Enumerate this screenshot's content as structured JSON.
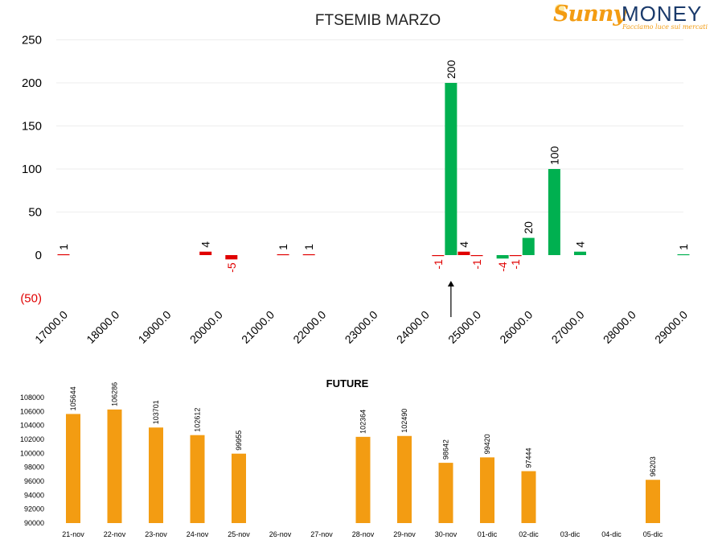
{
  "logo": {
    "brand_part1": "Sunny",
    "brand_part2": "MONEY",
    "tagline": "Facciamo luce sui mercati"
  },
  "colors": {
    "positive": "#00b050",
    "negative": "#e00000",
    "future_bar": "#f39c12",
    "axis_text": "#000000"
  },
  "chart_data": [
    {
      "type": "bar",
      "title": "FTSEMIB MARZO",
      "xlabel": "",
      "ylabel": "",
      "ylim": [
        -50,
        250
      ],
      "yticks": [
        -50,
        0,
        50,
        100,
        150,
        200,
        250
      ],
      "ytick_labels": [
        "(50)",
        "0",
        "50",
        "100",
        "150",
        "200",
        "250"
      ],
      "xlim": [
        17000,
        29000
      ],
      "xticks": [
        17000,
        18000,
        19000,
        20000,
        21000,
        22000,
        23000,
        24000,
        25000,
        26000,
        27000,
        28000,
        29000
      ],
      "xtick_labels": [
        "17000.0",
        "18000.0",
        "19000.0",
        "20000.0",
        "21000.0",
        "22000.0",
        "23000.0",
        "24000.0",
        "25000.0",
        "26000.0",
        "27000.0",
        "28000.0",
        "29000.0"
      ],
      "grid": true,
      "current_price_marker": 24500,
      "bars": [
        {
          "x": 17000,
          "value": 1,
          "label": "1",
          "sign": "neg"
        },
        {
          "x": 19750,
          "value": 4,
          "label": "4",
          "sign": "neg"
        },
        {
          "x": 20250,
          "value": -5,
          "label": "-5",
          "sign": "neg"
        },
        {
          "x": 21250,
          "value": 1,
          "label": "1",
          "sign": "neg"
        },
        {
          "x": 21750,
          "value": 1,
          "label": "1",
          "sign": "neg"
        },
        {
          "x": 24250,
          "value": -1,
          "label": "-1",
          "sign": "neg"
        },
        {
          "x": 24500,
          "value": 200,
          "label": "200",
          "sign": "pos"
        },
        {
          "x": 24750,
          "value": 4,
          "label": "4",
          "sign": "neg"
        },
        {
          "x": 25000,
          "value": -1,
          "label": "-1",
          "sign": "neg"
        },
        {
          "x": 25500,
          "value": -4,
          "label": "-4",
          "sign": "pos"
        },
        {
          "x": 25750,
          "value": -1,
          "label": "-1",
          "sign": "neg"
        },
        {
          "x": 26000,
          "value": 20,
          "label": "20",
          "sign": "pos"
        },
        {
          "x": 26500,
          "value": 100,
          "label": "100",
          "sign": "pos"
        },
        {
          "x": 27000,
          "value": 4,
          "label": "4",
          "sign": "pos"
        },
        {
          "x": 29000,
          "value": 1,
          "label": "1",
          "sign": "pos"
        }
      ]
    },
    {
      "type": "bar",
      "title": "FUTURE",
      "xlabel": "",
      "ylabel": "",
      "ylim": [
        90000,
        108000
      ],
      "yticks": [
        90000,
        92000,
        94000,
        96000,
        98000,
        100000,
        102000,
        104000,
        106000,
        108000
      ],
      "ytick_labels": [
        "90000",
        "92000",
        "94000",
        "96000",
        "98000",
        "100000",
        "102000",
        "104000",
        "106000",
        "108000"
      ],
      "categories": [
        "21-nov",
        "22-nov",
        "23-nov",
        "24-nov",
        "25-nov",
        "26-nov",
        "27-nov",
        "28-nov",
        "29-nov",
        "30-nov",
        "01-dic",
        "02-dic",
        "03-dic",
        "04-dic",
        "05-dic"
      ],
      "values": [
        105644,
        106286,
        103701,
        102612,
        99955,
        null,
        null,
        102364,
        102490,
        98642,
        99420,
        97444,
        null,
        null,
        96203
      ],
      "value_labels": [
        "105644",
        "106286",
        "103701",
        "102612",
        "99955",
        "",
        "",
        "102364",
        "102490",
        "98642",
        "99420",
        "97444",
        "",
        "",
        "96203"
      ]
    }
  ]
}
